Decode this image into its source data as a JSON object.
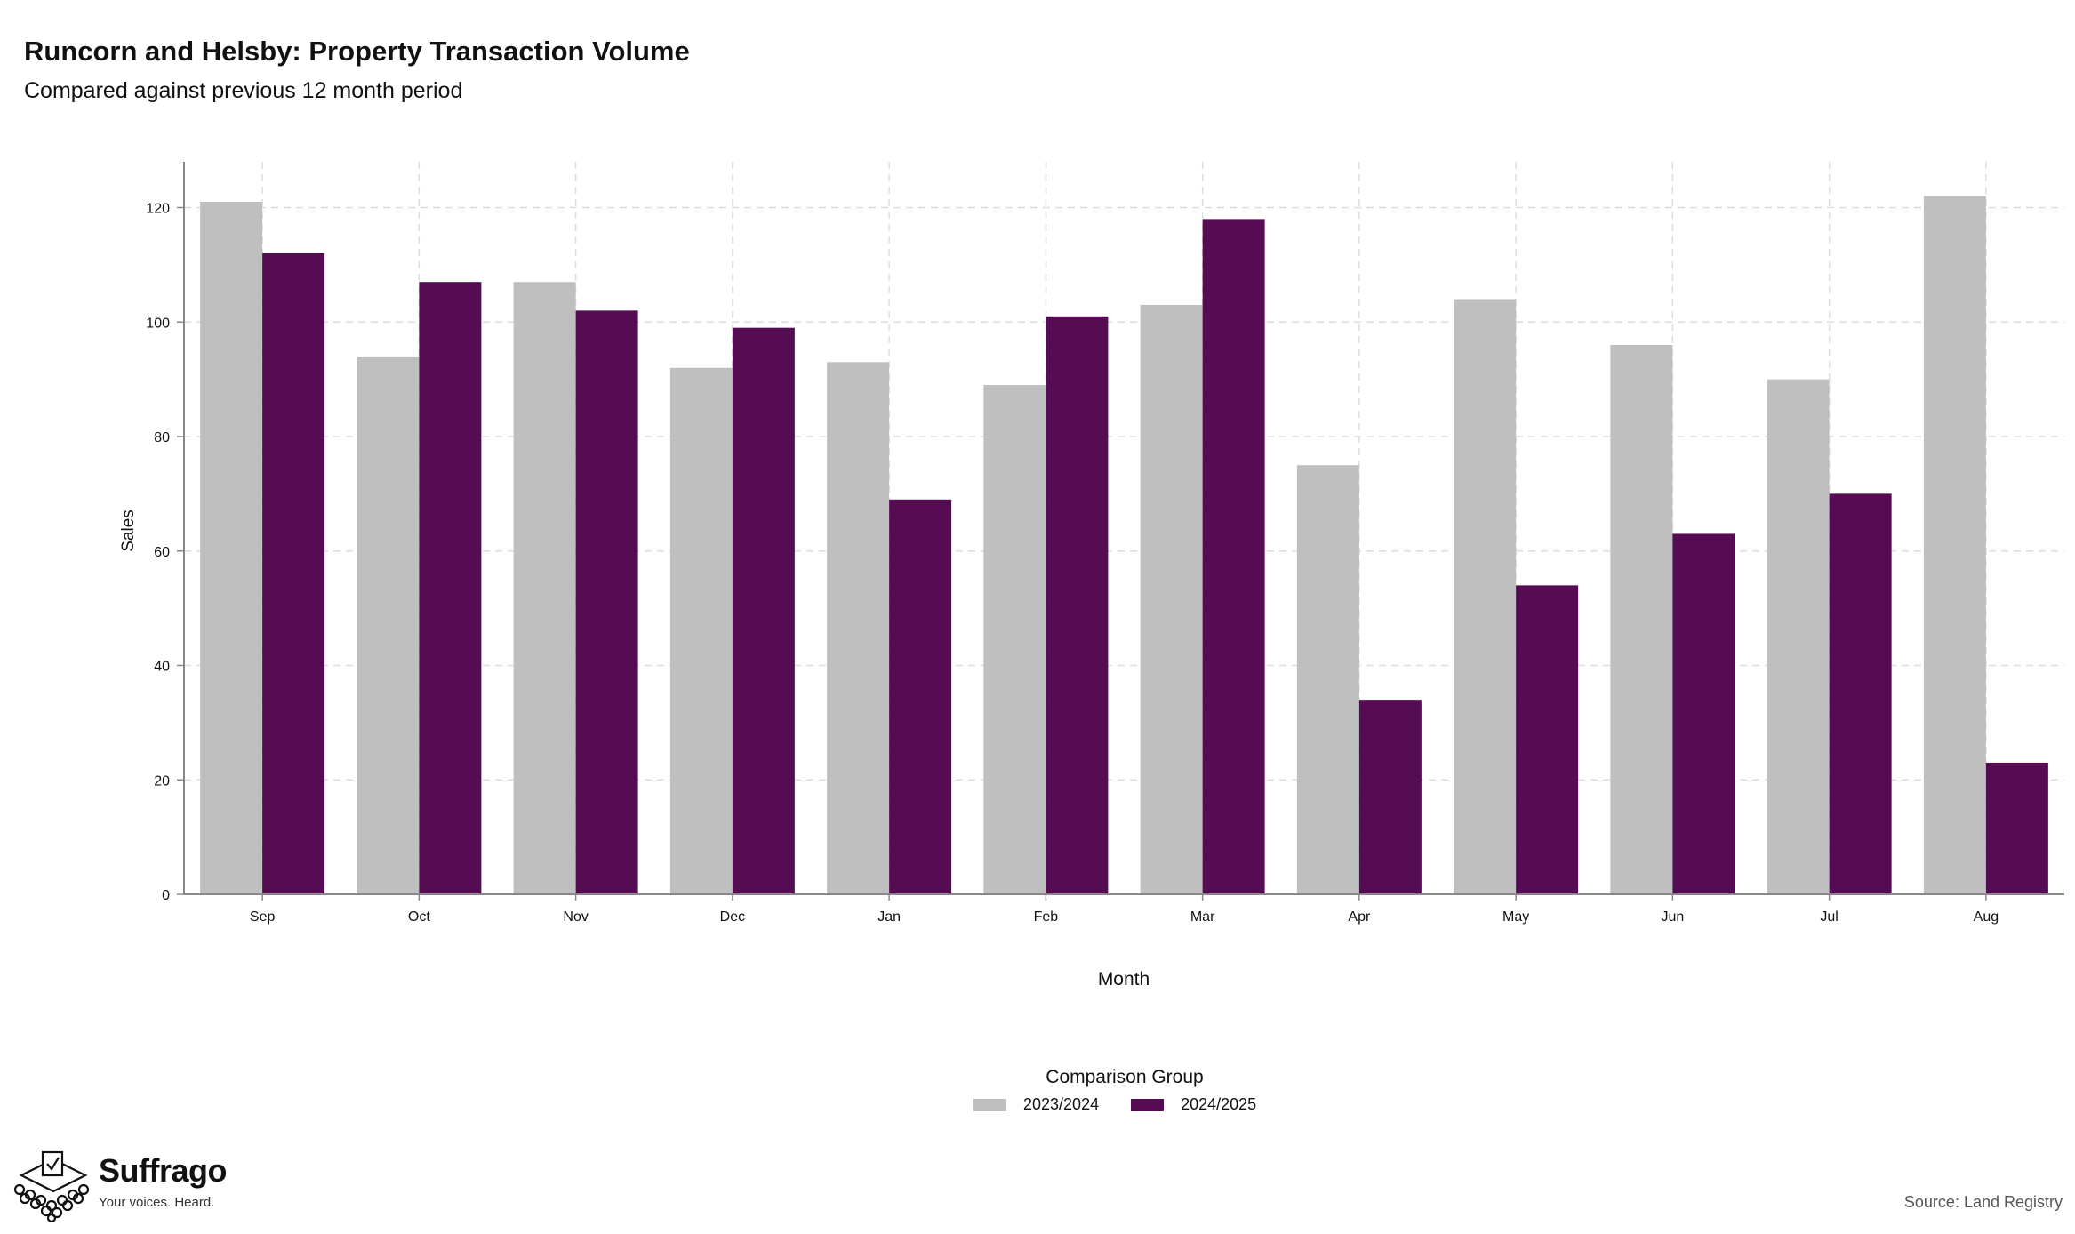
{
  "header": {
    "title": "Runcorn and Helsby: Property Transaction Volume",
    "subtitle": "Compared against previous 12 month period"
  },
  "legend": {
    "title": "Comparison Group",
    "items": [
      {
        "label": "2023/2024",
        "color": "#bfbfbf"
      },
      {
        "label": "2024/2025",
        "color": "#550c52"
      }
    ]
  },
  "branding": {
    "name": "Suffrago",
    "tagline": "Your voices. Heard.",
    "icon": "ballot-box-icon"
  },
  "footer": {
    "source": "Source: Land Registry"
  },
  "chart_data": {
    "type": "bar",
    "xlabel": "Month",
    "ylabel": "Sales",
    "ylim": [
      0,
      128
    ],
    "yticks": [
      0,
      20,
      40,
      60,
      80,
      100,
      120
    ],
    "grid": true,
    "legend_position": "bottom",
    "categories": [
      "Sep",
      "Oct",
      "Nov",
      "Dec",
      "Jan",
      "Feb",
      "Mar",
      "Apr",
      "May",
      "Jun",
      "Jul",
      "Aug"
    ],
    "series": [
      {
        "name": "2023/2024",
        "color": "#bfbfbf",
        "values": [
          121,
          94,
          107,
          92,
          93,
          89,
          103,
          75,
          104,
          96,
          90,
          122
        ]
      },
      {
        "name": "2024/2025",
        "color": "#550c52",
        "values": [
          112,
          107,
          102,
          99,
          69,
          101,
          118,
          34,
          54,
          63,
          70,
          23
        ]
      }
    ]
  }
}
